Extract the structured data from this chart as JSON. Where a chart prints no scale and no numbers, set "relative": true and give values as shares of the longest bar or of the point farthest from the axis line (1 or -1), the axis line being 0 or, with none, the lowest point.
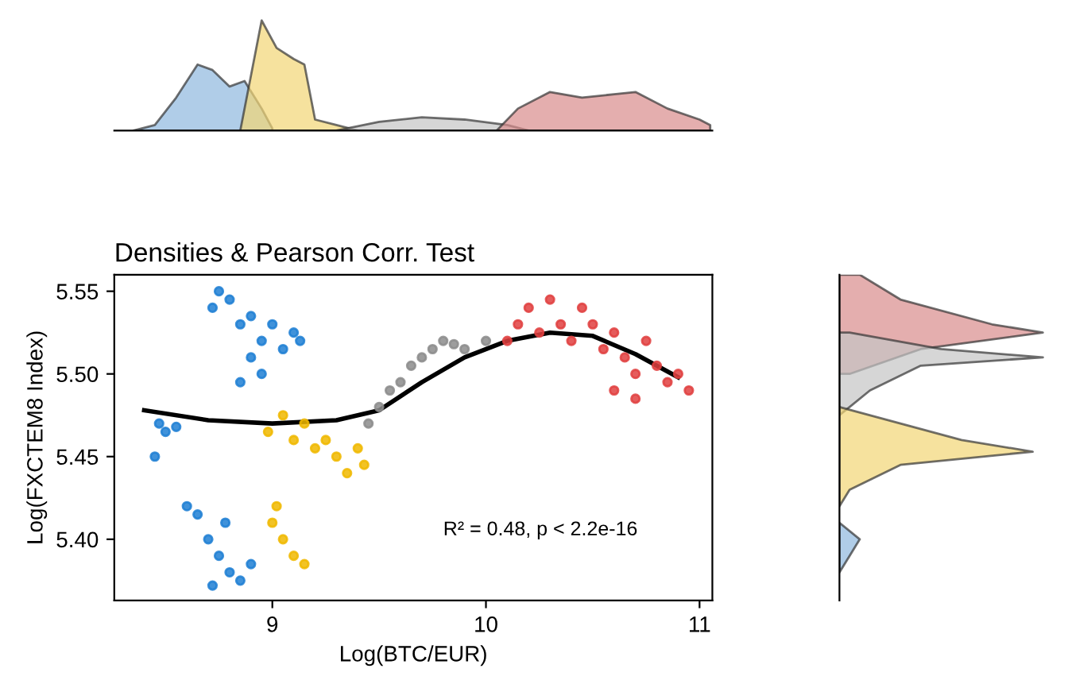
{
  "chart_data": [
    {
      "type": "area",
      "relative": true,
      "xlim": [
        8.26,
        11.06
      ],
      "tick_labels": false,
      "series": [
        {
          "color": "#8fb8de",
          "x": [
            8.35,
            8.45,
            8.55,
            8.65,
            8.72,
            8.8,
            8.87,
            8.95,
            9.0
          ],
          "values": [
            0,
            0.05,
            0.3,
            0.6,
            0.55,
            0.4,
            0.45,
            0.2,
            0.02
          ]
        },
        {
          "color": "#f2d675",
          "x": [
            8.85,
            8.9,
            8.95,
            9.02,
            9.1,
            9.15,
            9.2,
            9.3,
            9.4
          ],
          "values": [
            0,
            0.5,
            1.0,
            0.75,
            0.65,
            0.6,
            0.1,
            0.05,
            0
          ]
        },
        {
          "color": "#c4c4c4",
          "x": [
            9.3,
            9.5,
            9.7,
            9.9,
            10.1,
            10.2
          ],
          "values": [
            0,
            0.08,
            0.12,
            0.1,
            0.05,
            0
          ]
        },
        {
          "color": "#d98c8c",
          "x": [
            10.05,
            10.15,
            10.3,
            10.45,
            10.6,
            10.7,
            10.85,
            11.0,
            11.05
          ],
          "values": [
            0,
            0.2,
            0.35,
            0.3,
            0.33,
            0.35,
            0.2,
            0.1,
            0.05
          ]
        }
      ]
    },
    {
      "type": "scatter",
      "title": "Densities & Pearson Corr. Test",
      "xlabel": "Log(BTC/EUR)",
      "ylabel": "Log(FXCTEM8 Index)",
      "xlim": [
        8.26,
        11.06
      ],
      "ylim": [
        5.363,
        5.56
      ],
      "xticks": [
        9,
        10,
        11
      ],
      "yticks": [
        {
          "value": 5.4,
          "label": "5.40"
        },
        {
          "value": 5.45,
          "label": "5.45"
        },
        {
          "value": 5.5,
          "label": "5.50"
        },
        {
          "value": 5.55,
          "label": "5.55"
        }
      ],
      "annotations": [
        "R² = 0.48, p < 2.2e-16"
      ],
      "series": [
        {
          "color": "#1f7fd4",
          "x": [
            8.72,
            8.75,
            8.8,
            8.85,
            8.9,
            8.95,
            9.0,
            9.05,
            9.1,
            9.13,
            8.95,
            8.85,
            8.9,
            8.47,
            8.5,
            8.55,
            8.45,
            8.6,
            8.65,
            8.7,
            8.75,
            8.8,
            8.85,
            8.9,
            8.72,
            8.78
          ],
          "values": [
            5.54,
            5.55,
            5.545,
            5.53,
            5.535,
            5.52,
            5.53,
            5.515,
            5.525,
            5.52,
            5.5,
            5.495,
            5.51,
            5.47,
            5.465,
            5.468,
            5.45,
            5.42,
            5.415,
            5.4,
            5.39,
            5.38,
            5.375,
            5.385,
            5.372,
            5.41
          ]
        },
        {
          "color": "#f0b800",
          "x": [
            8.98,
            9.05,
            9.1,
            9.15,
            9.2,
            9.25,
            9.3,
            9.35,
            9.43,
            9.4,
            9.02,
            9.05,
            9.1,
            9.15,
            9.0
          ],
          "values": [
            5.465,
            5.475,
            5.46,
            5.47,
            5.455,
            5.46,
            5.45,
            5.44,
            5.445,
            5.455,
            5.42,
            5.4,
            5.39,
            5.385,
            5.41
          ]
        },
        {
          "color": "#8c8c8c",
          "x": [
            9.45,
            9.5,
            9.55,
            9.6,
            9.65,
            9.7,
            9.75,
            9.8,
            9.85,
            9.9,
            10.0
          ],
          "values": [
            5.47,
            5.48,
            5.49,
            5.495,
            5.505,
            5.51,
            5.515,
            5.52,
            5.518,
            5.515,
            5.52
          ]
        },
        {
          "color": "#e04040",
          "x": [
            10.1,
            10.15,
            10.2,
            10.25,
            10.3,
            10.35,
            10.4,
            10.45,
            10.5,
            10.55,
            10.6,
            10.65,
            10.7,
            10.75,
            10.8,
            10.85,
            10.9,
            10.95,
            10.6,
            10.7
          ],
          "values": [
            5.52,
            5.53,
            5.54,
            5.525,
            5.545,
            5.53,
            5.52,
            5.54,
            5.53,
            5.515,
            5.525,
            5.51,
            5.5,
            5.52,
            5.505,
            5.495,
            5.5,
            5.49,
            5.49,
            5.485
          ]
        },
        {
          "type": "line",
          "color": "#000000",
          "x": [
            8.4,
            8.7,
            9.0,
            9.3,
            9.5,
            9.7,
            9.9,
            10.1,
            10.3,
            10.5,
            10.7,
            10.9
          ],
          "values": [
            5.478,
            5.472,
            5.47,
            5.472,
            5.478,
            5.495,
            5.51,
            5.52,
            5.525,
            5.523,
            5.512,
            5.498
          ]
        }
      ]
    },
    {
      "type": "area",
      "relative": true,
      "orientation": "horizontal",
      "ylim": [
        5.363,
        5.56
      ],
      "tick_labels": false,
      "series": [
        {
          "color": "#d98c8c",
          "x": [
            5.56,
            5.545,
            5.53,
            5.525,
            5.515,
            5.5
          ],
          "values": [
            0.1,
            0.3,
            0.75,
            1.0,
            0.4,
            0.05
          ]
        },
        {
          "color": "#c4c4c4",
          "x": [
            5.525,
            5.515,
            5.51,
            5.505,
            5.49,
            5.475
          ],
          "values": [
            0.05,
            0.5,
            1.0,
            0.4,
            0.15,
            0
          ]
        },
        {
          "color": "#f2d675",
          "x": [
            5.48,
            5.47,
            5.46,
            5.453,
            5.445,
            5.43,
            5.42
          ],
          "values": [
            0,
            0.3,
            0.6,
            0.95,
            0.3,
            0.05,
            0
          ]
        },
        {
          "color": "#8fb8de",
          "x": [
            5.41,
            5.4,
            5.39,
            5.38
          ],
          "values": [
            0,
            0.1,
            0.05,
            0
          ]
        }
      ]
    }
  ]
}
